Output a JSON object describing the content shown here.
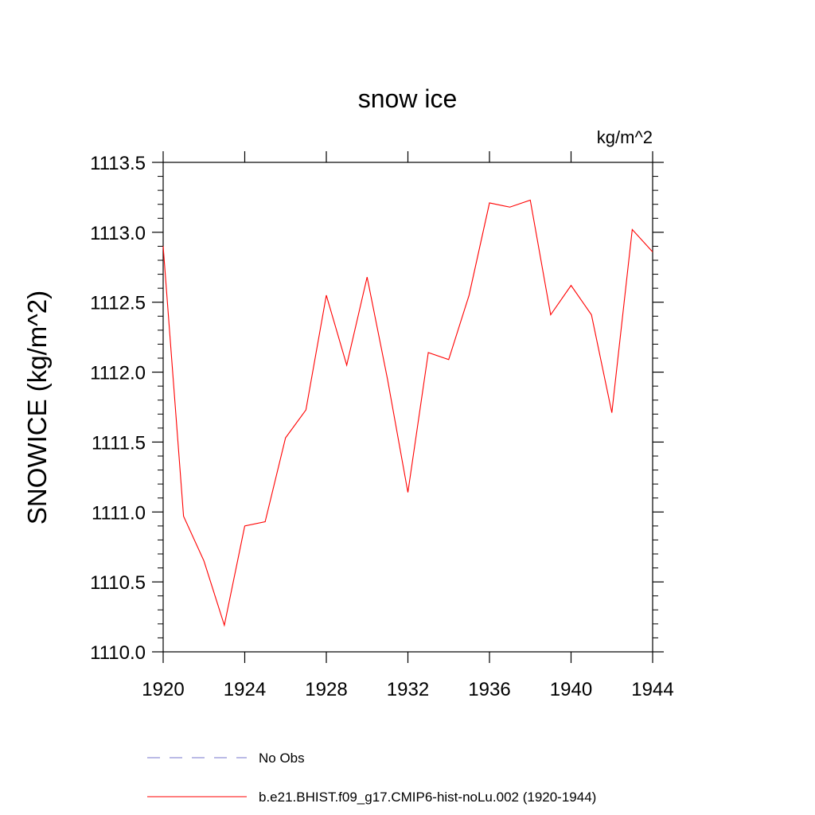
{
  "chart_data": {
    "type": "line",
    "title": "snow ice",
    "units_label": "kg/m^2",
    "ylabel": "SNOWICE  (kg/m^2)",
    "xlabel": "",
    "xlim": [
      1920,
      1944
    ],
    "ylim": [
      1110.0,
      1113.5
    ],
    "x_ticks": [
      1920,
      1924,
      1928,
      1932,
      1936,
      1940,
      1944
    ],
    "x_tick_labels": [
      "1920",
      "1924",
      "1928",
      "1932",
      "1936",
      "1940",
      "1944"
    ],
    "y_ticks": [
      1110.0,
      1110.5,
      1111.0,
      1111.5,
      1112.0,
      1112.5,
      1113.0,
      1113.5
    ],
    "y_tick_labels": [
      "1110.0",
      "1110.5",
      "1111.0",
      "1111.5",
      "1112.0",
      "1112.5",
      "1113.0",
      "1113.5"
    ],
    "grid": false,
    "legend_position": "bottom",
    "series": [
      {
        "name": "b.e21.BHIST.f09_g17.CMIP6-hist-noLu.002 (1920-1944)",
        "color": "#ff0000",
        "style": "solid",
        "x": [
          1920,
          1921,
          1922,
          1923,
          1924,
          1925,
          1926,
          1927,
          1928,
          1929,
          1930,
          1931,
          1932,
          1933,
          1934,
          1935,
          1936,
          1937,
          1938,
          1939,
          1940,
          1941,
          1942,
          1943,
          1944
        ],
        "values": [
          1112.9,
          1110.97,
          1110.65,
          1110.19,
          1110.9,
          1110.93,
          1111.53,
          1111.73,
          1112.55,
          1112.05,
          1112.68,
          1111.95,
          1111.14,
          1112.14,
          1112.09,
          1112.55,
          1113.21,
          1113.18,
          1113.23,
          1112.41,
          1112.62,
          1112.41,
          1111.71,
          1113.02,
          1112.86
        ]
      },
      {
        "name": "No Obs",
        "color": "#7777cc",
        "style": "dashed",
        "x": [],
        "values": []
      }
    ]
  }
}
